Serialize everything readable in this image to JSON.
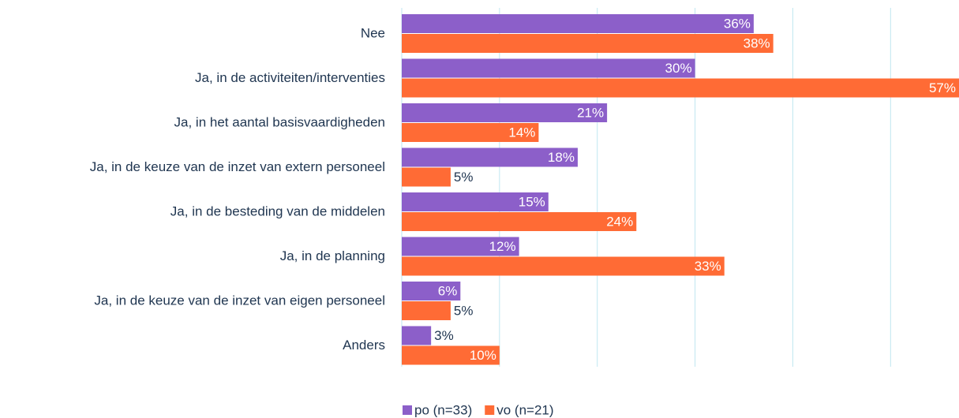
{
  "chart_data": {
    "type": "hbar",
    "categories": [
      "Nee",
      "Ja, in de activiteiten/interventies",
      "Ja, in het aantal basisvaardigheden",
      "Ja, in de keuze van de inzet van extern personeel",
      "Ja, in de besteding van de middelen",
      "Ja, in de planning",
      "Ja, in de keuze van de inzet van eigen personeel",
      "Anders"
    ],
    "series": [
      {
        "name": "po (n=33)",
        "color": "#8c5fc9",
        "values": [
          36,
          30,
          21,
          18,
          15,
          12,
          6,
          3
        ],
        "value_labels": [
          "36%",
          "30%",
          "21%",
          "18%",
          "15%",
          "12%",
          "6%",
          "3%"
        ]
      },
      {
        "name": "vo (n=21)",
        "color": "#ff6b35",
        "values": [
          38,
          57,
          14,
          5,
          24,
          33,
          5,
          10
        ],
        "value_labels": [
          "38%",
          "57%",
          "14%",
          "5%",
          "24%",
          "33%",
          "5%",
          "10%"
        ]
      }
    ],
    "xlim": [
      0,
      57
    ],
    "xticks": [
      0,
      10,
      20,
      30,
      40,
      50
    ],
    "grid": true
  }
}
